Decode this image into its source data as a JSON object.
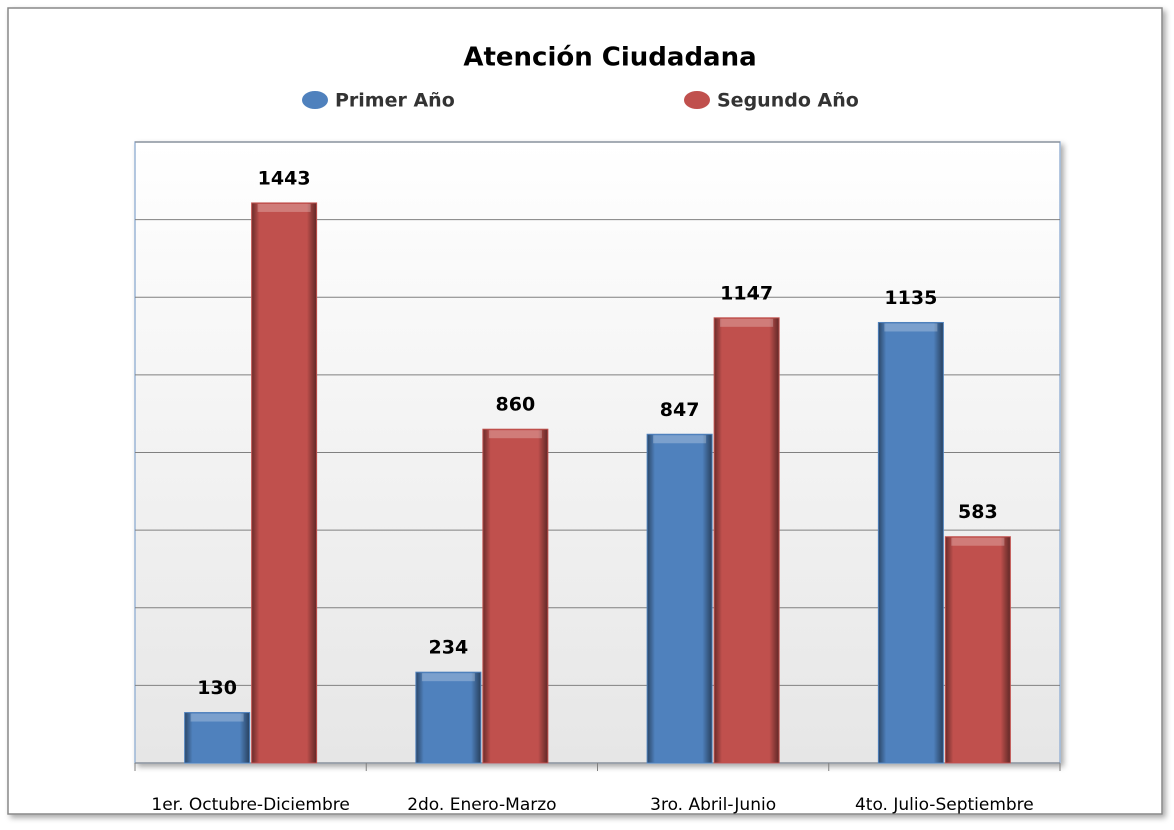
{
  "chart_data": {
    "type": "bar",
    "title": "Atención Ciudadana",
    "categories": [
      "1er. Octubre-Diciembre",
      "2do. Enero-Marzo",
      "3ro. Abril-Junio",
      "4to. Julio-Septiembre"
    ],
    "series": [
      {
        "name": "Primer Año",
        "color": "#4f81bd",
        "values": [
          130,
          234,
          847,
          1135
        ]
      },
      {
        "name": "Segundo Año",
        "color": "#c0504d",
        "values": [
          1443,
          860,
          1147,
          583
        ]
      }
    ],
    "ylim": [
      0,
      1600
    ],
    "yticks": [
      0,
      200,
      400,
      600,
      800,
      1000,
      1200,
      1400,
      1600
    ],
    "grid": true,
    "legend": "top"
  }
}
